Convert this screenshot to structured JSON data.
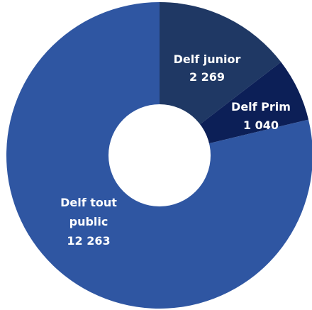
{
  "chart_data": {
    "type": "pie",
    "donut": true,
    "title": "",
    "slices": [
      {
        "name": "Delf junior",
        "value": 2269,
        "value_label": "2 269",
        "color": "#1f3864"
      },
      {
        "name": "Delf Prim",
        "value": 1040,
        "value_label": "1 040",
        "color": "#0c1f57"
      },
      {
        "name": "Delf tout public",
        "value": 12263,
        "value_label": "12 263",
        "color": "#2f56a2",
        "name_lines": [
          "Delf tout",
          "public"
        ]
      }
    ],
    "start_angle": "top (12 o'clock)",
    "direction": "clockwise",
    "legend": "none (labels inside slices)"
  }
}
